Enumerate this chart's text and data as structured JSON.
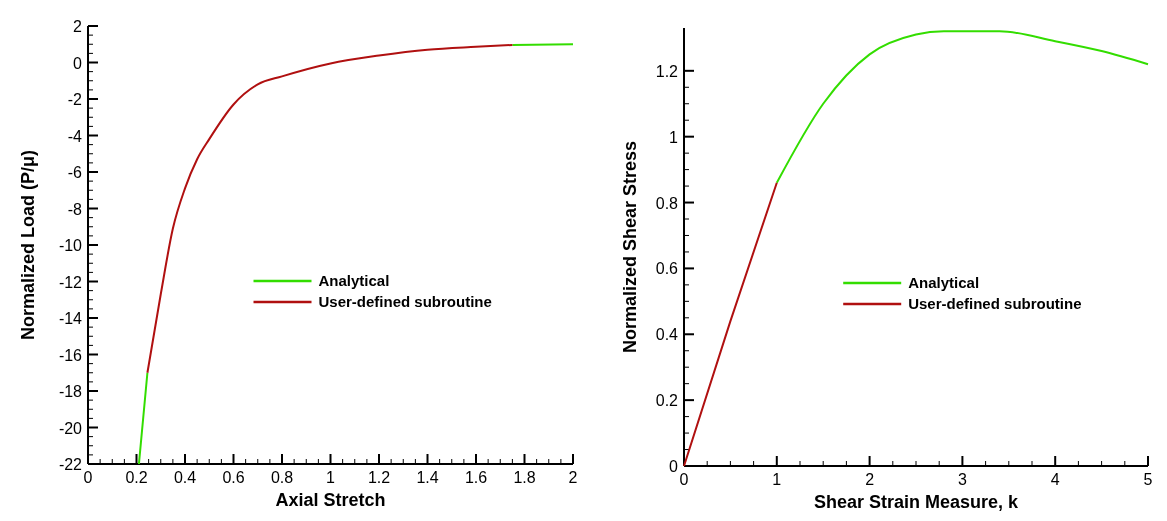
{
  "chart_data": [
    {
      "type": "line",
      "xlabel": "Axial Stretch",
      "ylabel": "Normalized Load (P/μ)",
      "xlim": [
        0,
        2
      ],
      "ylim": [
        -22,
        2
      ],
      "xticks": [
        0,
        0.2,
        0.4,
        0.6,
        0.8,
        1,
        1.2,
        1.4,
        1.6,
        1.8,
        2
      ],
      "yticks": [
        -22,
        -20,
        -18,
        -16,
        -14,
        -12,
        -10,
        -8,
        -6,
        -4,
        -2,
        0,
        2
      ],
      "grid": false,
      "legend": "right",
      "marker": "none",
      "line_style": "solid",
      "series": [
        {
          "name": "Analytical",
          "color": "#33dd00",
          "x": [
            0.21,
            0.245,
            1,
            1.75,
            2
          ],
          "values": [
            -22,
            -17,
            null,
            0.96,
            1.0
          ]
        },
        {
          "name": "User-defined subroutine",
          "color": "#b01010",
          "x": [
            0.245,
            0.3,
            0.35,
            0.4,
            0.45,
            0.5,
            0.6,
            0.7,
            0.8,
            1,
            1.2,
            1.4,
            1.6,
            1.75
          ],
          "values": [
            -17,
            -12.7,
            -9.1,
            -6.9,
            -5.3,
            -4.2,
            -2.3,
            -1.2,
            -0.76,
            -0.05,
            0.38,
            0.7,
            0.86,
            0.96
          ]
        }
      ]
    },
    {
      "type": "line",
      "xlabel": "Shear Strain Measure, k",
      "ylabel": "Normalized Shear Stress",
      "xlim": [
        0,
        5
      ],
      "ylim": [
        0,
        1.33
      ],
      "xticks": [
        0,
        1,
        2,
        3,
        4,
        5
      ],
      "yticks": [
        0,
        0.2,
        0.4,
        0.6,
        0.8,
        1,
        1.2
      ],
      "grid": false,
      "legend": "right",
      "marker": "none",
      "line_style": "solid",
      "series": [
        {
          "name": "Analytical",
          "color": "#33dd00",
          "x": [
            1,
            1.5,
            2,
            2.5,
            2.8,
            3.4,
            4,
            4.5,
            5
          ],
          "values": [
            0.86,
            1.1,
            1.25,
            1.31,
            1.32,
            1.32,
            1.29,
            1.26,
            1.22
          ]
        },
        {
          "name": "User-defined subroutine",
          "color": "#b01010",
          "x": [
            0,
            0.5,
            1
          ],
          "values": [
            0,
            0.44,
            0.86
          ]
        }
      ]
    }
  ]
}
